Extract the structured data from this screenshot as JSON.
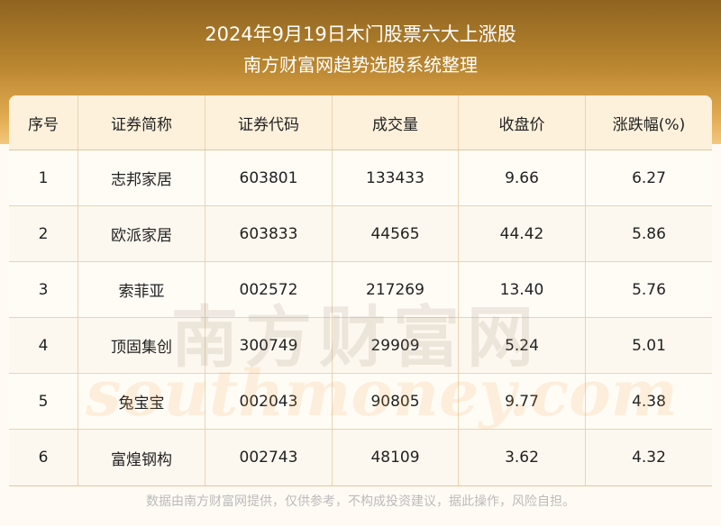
{
  "header": {
    "title": "2024年9月19日木门股票六大上涨股",
    "subtitle": "南方财富网趋势选股系统整理"
  },
  "table": {
    "columns": [
      "序号",
      "证券简称",
      "证券代码",
      "成交量",
      "收盘价",
      "涨跌幅(%)"
    ],
    "rows": [
      [
        "1",
        "志邦家居",
        "603801",
        "133433",
        "9.66",
        "6.27"
      ],
      [
        "2",
        "欧派家居",
        "603833",
        "44565",
        "44.42",
        "5.86"
      ],
      [
        "3",
        "索菲亚",
        "002572",
        "217269",
        "13.40",
        "5.76"
      ],
      [
        "4",
        "顶固集创",
        "300749",
        "29909",
        "5.24",
        "5.01"
      ],
      [
        "5",
        "兔宝宝",
        "002043",
        "90805",
        "9.77",
        "4.38"
      ],
      [
        "6",
        "富煌钢构",
        "002743",
        "48109",
        "3.62",
        "4.32"
      ]
    ]
  },
  "watermark": {
    "cn": "南方财富网",
    "en": "southmoney.com"
  },
  "footer": "数据由南方财富网提供，仅供参考，不构成投资建议，据此操作，风险自担。",
  "colors": {
    "banner": "#b9852f",
    "header_row": "#fdf1dc",
    "border": "#e3c49a"
  }
}
